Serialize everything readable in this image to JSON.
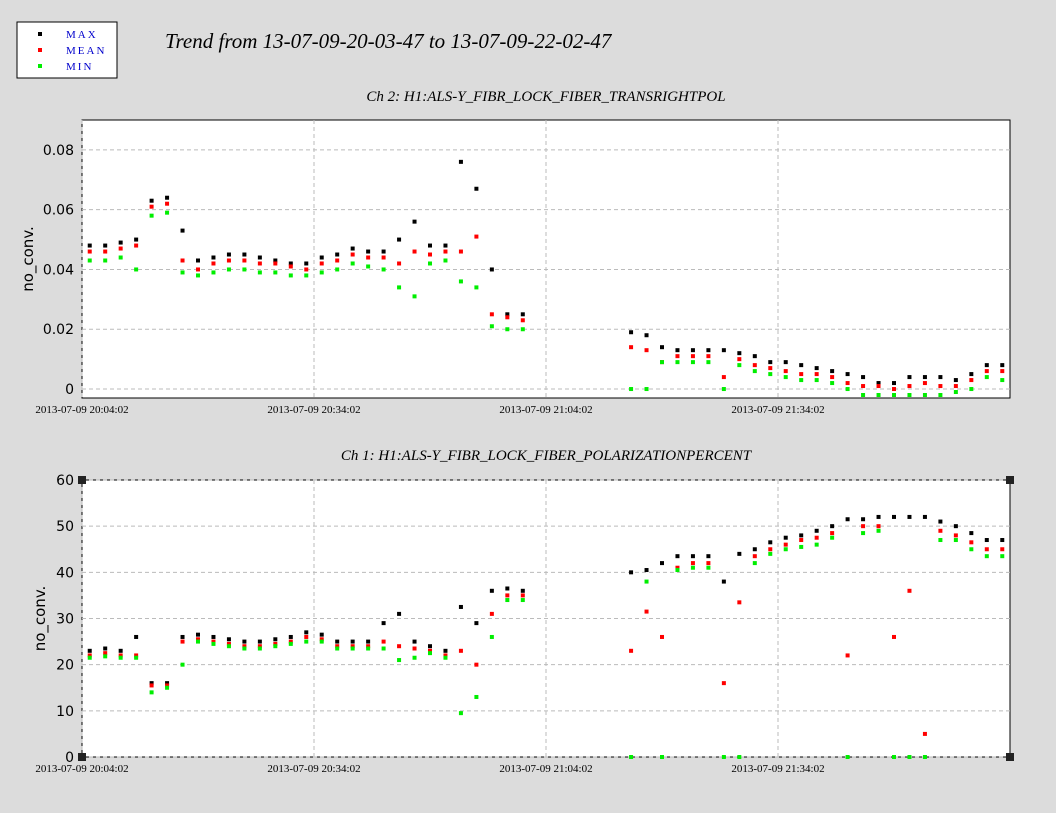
{
  "title": "Trend from 13-07-09-20-03-47 to 13-07-09-22-02-47",
  "chart_data": [
    {
      "type": "scatter",
      "title": "Ch 2: H1:ALS-Y_FIBR_LOCK_FIBER_TRANSRIGHTPOL",
      "y_label": "no_conv.",
      "x": [
        "2013-07-09 20:05:02",
        "2013-07-09 20:07:02",
        "2013-07-09 20:09:02",
        "2013-07-09 20:11:02",
        "2013-07-09 20:13:02",
        "2013-07-09 20:15:02",
        "2013-07-09 20:17:02",
        "2013-07-09 20:19:02",
        "2013-07-09 20:21:02",
        "2013-07-09 20:23:02",
        "2013-07-09 20:25:02",
        "2013-07-09 20:27:02",
        "2013-07-09 20:29:02",
        "2013-07-09 20:31:02",
        "2013-07-09 20:33:02",
        "2013-07-09 20:35:02",
        "2013-07-09 20:37:02",
        "2013-07-09 20:39:02",
        "2013-07-09 20:41:02",
        "2013-07-09 20:43:02",
        "2013-07-09 20:45:02",
        "2013-07-09 20:47:02",
        "2013-07-09 20:49:02",
        "2013-07-09 20:51:02",
        "2013-07-09 20:53:02",
        "2013-07-09 20:55:02",
        "2013-07-09 20:57:02",
        "2013-07-09 20:59:02",
        "2013-07-09 21:01:02",
        "2013-07-09 21:15:02",
        "2013-07-09 21:17:02",
        "2013-07-09 21:19:02",
        "2013-07-09 21:21:02",
        "2013-07-09 21:23:02",
        "2013-07-09 21:25:02",
        "2013-07-09 21:27:02",
        "2013-07-09 21:29:02",
        "2013-07-09 21:31:02",
        "2013-07-09 21:33:02",
        "2013-07-09 21:35:02",
        "2013-07-09 21:37:02",
        "2013-07-09 21:39:02",
        "2013-07-09 21:41:02",
        "2013-07-09 21:43:02",
        "2013-07-09 21:45:02",
        "2013-07-09 21:47:02",
        "2013-07-09 21:49:02",
        "2013-07-09 21:51:02",
        "2013-07-09 21:53:02",
        "2013-07-09 21:55:02",
        "2013-07-09 21:57:02",
        "2013-07-09 21:59:02",
        "2013-07-09 22:01:02",
        "2013-07-09 22:03:02"
      ],
      "series": [
        {
          "name": "MAX",
          "color": "#000000",
          "values": [
            0.048,
            0.048,
            0.049,
            0.05,
            0.063,
            0.064,
            0.053,
            0.043,
            0.044,
            0.045,
            0.045,
            0.044,
            0.043,
            0.042,
            0.042,
            0.044,
            0.045,
            0.047,
            0.046,
            0.046,
            0.05,
            0.056,
            0.048,
            0.048,
            0.076,
            0.067,
            0.04,
            0.025,
            0.025,
            0.019,
            0.018,
            0.014,
            0.013,
            0.013,
            0.013,
            0.013,
            0.012,
            0.011,
            0.009,
            0.009,
            0.008,
            0.007,
            0.006,
            0.005,
            0.004,
            0.002,
            0.002,
            0.004,
            0.004,
            0.004,
            0.003,
            0.005,
            0.008,
            0.008
          ]
        },
        {
          "name": "MEAN",
          "color": "#ff0000",
          "values": [
            0.046,
            0.046,
            0.047,
            0.048,
            0.061,
            0.062,
            0.043,
            0.04,
            0.042,
            0.043,
            0.043,
            0.042,
            0.042,
            0.041,
            0.04,
            0.042,
            0.043,
            0.045,
            0.044,
            0.044,
            0.042,
            0.046,
            0.045,
            0.046,
            0.046,
            0.051,
            0.025,
            0.024,
            0.023,
            0.014,
            0.013,
            0.009,
            0.011,
            0.011,
            0.011,
            0.004,
            0.01,
            0.008,
            0.007,
            0.006,
            0.005,
            0.005,
            0.004,
            0.002,
            0.001,
            0.001,
            0.0,
            0.001,
            0.002,
            0.001,
            0.001,
            0.003,
            0.006,
            0.006
          ]
        },
        {
          "name": "MIN",
          "color": "#00ee00",
          "values": [
            0.043,
            0.043,
            0.044,
            0.04,
            0.058,
            0.059,
            0.039,
            0.038,
            0.039,
            0.04,
            0.04,
            0.039,
            0.039,
            0.038,
            0.038,
            0.039,
            0.04,
            0.042,
            0.041,
            0.04,
            0.034,
            0.031,
            0.042,
            0.043,
            0.036,
            0.034,
            0.021,
            0.02,
            0.02,
            0.0,
            0.0,
            0.009,
            0.009,
            0.009,
            0.009,
            0.0,
            0.008,
            0.006,
            0.005,
            0.004,
            0.003,
            0.003,
            0.002,
            0.0,
            -0.002,
            -0.002,
            -0.002,
            -0.002,
            -0.002,
            -0.002,
            -0.001,
            0.0,
            0.004,
            0.003
          ]
        }
      ],
      "xlim": [
        "2013-07-09 20:04:02",
        "2013-07-09 22:04:02"
      ],
      "xticks": [
        "2013-07-09 20:04:02",
        "2013-07-09 20:34:02",
        "2013-07-09 21:04:02",
        "2013-07-09 21:34:02"
      ],
      "ylim": [
        -0.003,
        0.09
      ],
      "yticks": [
        0,
        0.02,
        0.04,
        0.06,
        0.08
      ],
      "grid": true
    },
    {
      "type": "scatter",
      "title": "Ch 1: H1:ALS-Y_FIBR_LOCK_FIBER_POLARIZATIONPERCENT",
      "y_label": "no_conv.",
      "x": [
        "2013-07-09 20:05:02",
        "2013-07-09 20:07:02",
        "2013-07-09 20:09:02",
        "2013-07-09 20:11:02",
        "2013-07-09 20:13:02",
        "2013-07-09 20:15:02",
        "2013-07-09 20:17:02",
        "2013-07-09 20:19:02",
        "2013-07-09 20:21:02",
        "2013-07-09 20:23:02",
        "2013-07-09 20:25:02",
        "2013-07-09 20:27:02",
        "2013-07-09 20:29:02",
        "2013-07-09 20:31:02",
        "2013-07-09 20:33:02",
        "2013-07-09 20:35:02",
        "2013-07-09 20:37:02",
        "2013-07-09 20:39:02",
        "2013-07-09 20:41:02",
        "2013-07-09 20:43:02",
        "2013-07-09 20:45:02",
        "2013-07-09 20:47:02",
        "2013-07-09 20:49:02",
        "2013-07-09 20:51:02",
        "2013-07-09 20:53:02",
        "2013-07-09 20:55:02",
        "2013-07-09 20:57:02",
        "2013-07-09 20:59:02",
        "2013-07-09 21:01:02",
        "2013-07-09 21:15:02",
        "2013-07-09 21:17:02",
        "2013-07-09 21:19:02",
        "2013-07-09 21:21:02",
        "2013-07-09 21:23:02",
        "2013-07-09 21:25:02",
        "2013-07-09 21:27:02",
        "2013-07-09 21:29:02",
        "2013-07-09 21:31:02",
        "2013-07-09 21:33:02",
        "2013-07-09 21:35:02",
        "2013-07-09 21:37:02",
        "2013-07-09 21:39:02",
        "2013-07-09 21:41:02",
        "2013-07-09 21:43:02",
        "2013-07-09 21:45:02",
        "2013-07-09 21:47:02",
        "2013-07-09 21:49:02",
        "2013-07-09 21:51:02",
        "2013-07-09 21:53:02",
        "2013-07-09 21:55:02",
        "2013-07-09 21:57:02",
        "2013-07-09 21:59:02",
        "2013-07-09 22:01:02",
        "2013-07-09 22:03:02"
      ],
      "series": [
        {
          "name": "MAX",
          "color": "#000000",
          "values": [
            23,
            23.5,
            23,
            26,
            16,
            16,
            26,
            26.5,
            26,
            25.5,
            25,
            25,
            25.5,
            26,
            27,
            26.5,
            25,
            25,
            25,
            29,
            31,
            25,
            24,
            23,
            32.5,
            29,
            36,
            36.5,
            36,
            40,
            40.5,
            42,
            43.5,
            43.5,
            43.5,
            38,
            44,
            45,
            46.5,
            47.5,
            48,
            49,
            50,
            51.5,
            51.5,
            52,
            52,
            52,
            52,
            51,
            50,
            48.5,
            47,
            47
          ]
        },
        {
          "name": "MEAN",
          "color": "#ff0000",
          "values": [
            22,
            22.5,
            22,
            22,
            15.5,
            15.5,
            25,
            25.5,
            25,
            24.5,
            24,
            24,
            24.5,
            25,
            26,
            25.5,
            24,
            24,
            24,
            25,
            24,
            23.5,
            23,
            22,
            23,
            20,
            31,
            35,
            35,
            23,
            31.5,
            26,
            41,
            42,
            42,
            16,
            33.5,
            43.5,
            45,
            46,
            47,
            47.5,
            48.5,
            22,
            50,
            50,
            26,
            36,
            5,
            49,
            48,
            46.5,
            45,
            45
          ]
        },
        {
          "name": "MIN",
          "color": "#00ee00",
          "values": [
            21.5,
            21.8,
            21.5,
            21.5,
            14,
            15,
            20,
            25,
            24.5,
            24,
            23.5,
            23.5,
            24,
            24.5,
            25,
            25,
            23.5,
            23.5,
            23.5,
            23.5,
            21,
            21.5,
            22.5,
            21.5,
            9.5,
            13,
            26,
            34,
            34,
            0,
            38,
            0,
            40.5,
            41,
            41,
            0,
            0,
            42,
            44,
            45,
            45.5,
            46,
            47.5,
            0,
            48.5,
            49,
            0,
            0,
            0,
            47,
            47,
            45,
            43.5,
            43.5
          ]
        }
      ],
      "xlim": [
        "2013-07-09 20:04:02",
        "2013-07-09 22:04:02"
      ],
      "xticks": [
        "2013-07-09 20:04:02",
        "2013-07-09 20:34:02",
        "2013-07-09 21:04:02",
        "2013-07-09 21:34:02"
      ],
      "ylim": [
        0,
        60
      ],
      "yticks": [
        0,
        10,
        20,
        30,
        40,
        50,
        60
      ],
      "grid": true
    }
  ]
}
